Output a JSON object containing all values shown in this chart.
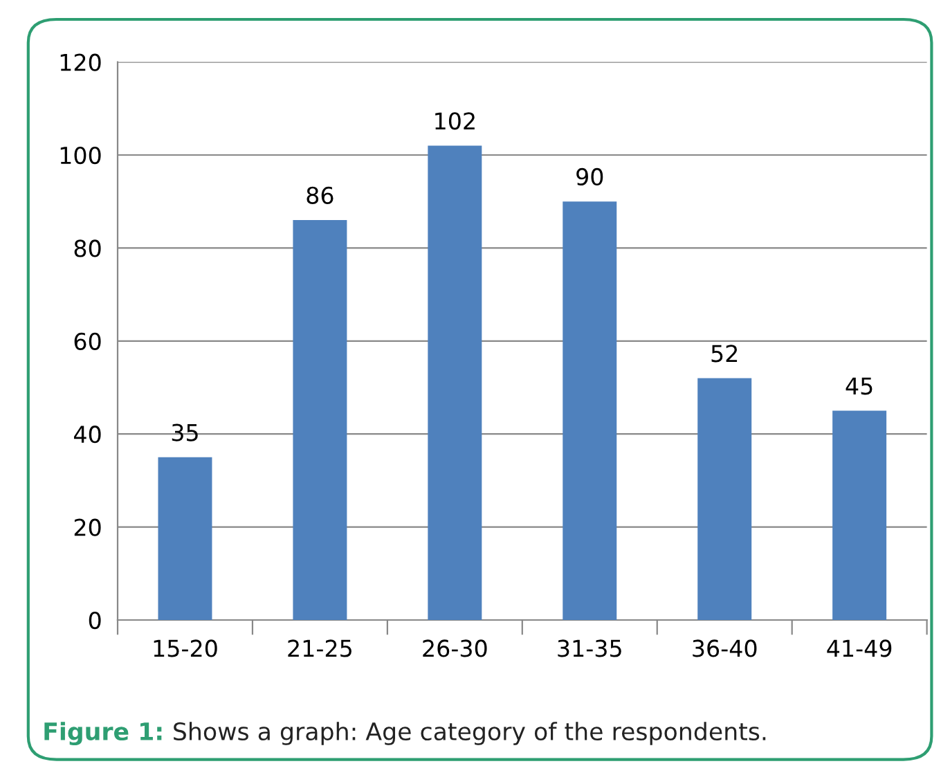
{
  "chart_data": {
    "type": "bar",
    "categories": [
      "15-20",
      "21-25",
      "26-30",
      "31-35",
      "36-40",
      "41-49"
    ],
    "values": [
      35,
      86,
      102,
      90,
      52,
      45
    ],
    "color": "#4f81bd",
    "ylim": [
      0,
      120
    ],
    "yticks": [
      0,
      20,
      40,
      60,
      80,
      100,
      120
    ],
    "grid": "y",
    "data_labels": true,
    "legend": false,
    "annotations": [
      "Figure 1:",
      "Shows a graph: Age category of the respondents."
    ]
  }
}
